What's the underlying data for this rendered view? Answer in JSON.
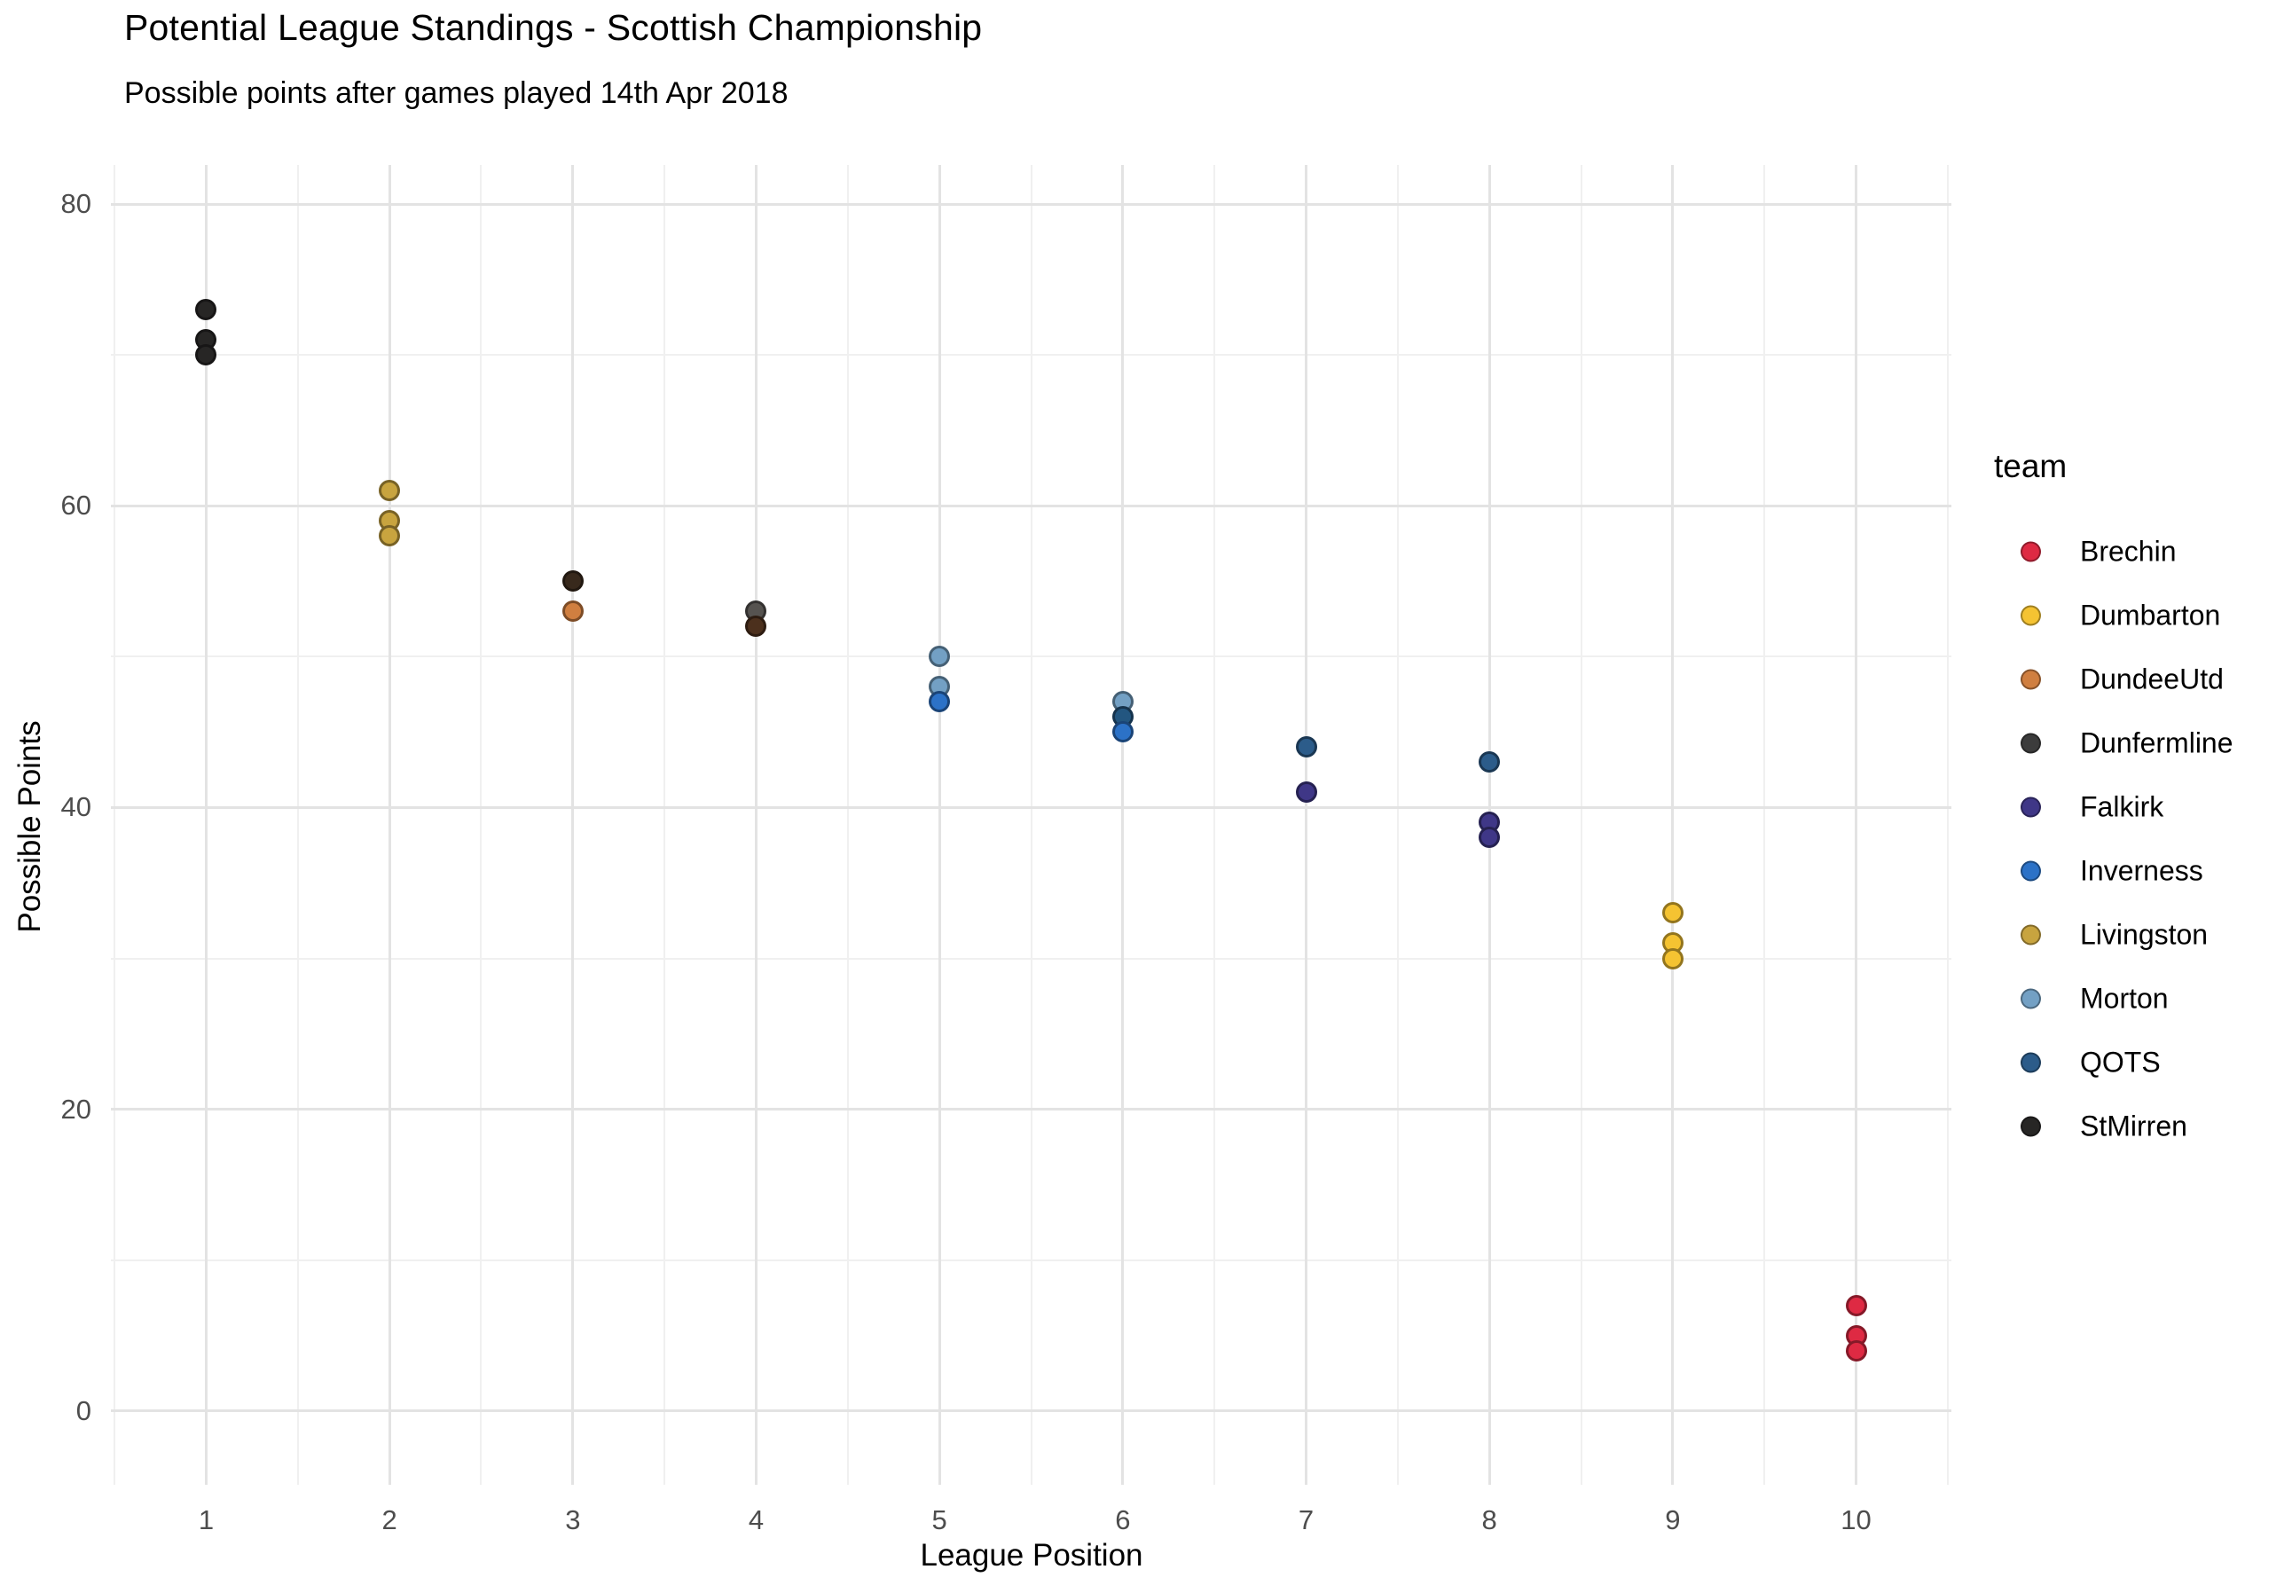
{
  "chart_data": {
    "type": "scatter",
    "title": "Potential League Standings - Scottish Championship",
    "subtitle": "Possible points after games played 14th Apr 2018",
    "xlabel": "League Position",
    "ylabel": "Possible Points",
    "legend_title": "team",
    "legend_position": "right",
    "grid": true,
    "xlim": [
      0.48,
      10.52
    ],
    "ylim": [
      -4.9,
      82.6
    ],
    "x_ticks": [
      1,
      2,
      3,
      4,
      5,
      6,
      7,
      8,
      9,
      10
    ],
    "y_ticks": [
      0,
      20,
      40,
      60,
      80
    ],
    "x_minor": [
      0.5,
      1.5,
      2.5,
      3.5,
      4.5,
      5.5,
      6.5,
      7.5,
      8.5,
      9.5,
      10.5
    ],
    "y_minor": [
      10,
      30,
      50,
      70
    ],
    "teams": [
      {
        "name": "Brechin",
        "color": "#DE2A43"
      },
      {
        "name": "Dumbarton",
        "color": "#F5C332"
      },
      {
        "name": "DundeeUtd",
        "color": "#D07F40"
      },
      {
        "name": "Dunfermline",
        "color": "#3C3C3C"
      },
      {
        "name": "Falkirk",
        "color": "#3F3787"
      },
      {
        "name": "Inverness",
        "color": "#2C72C7"
      },
      {
        "name": "Livingston",
        "color": "#C8A43F"
      },
      {
        "name": "Morton",
        "color": "#73A0C4"
      },
      {
        "name": "QOTS",
        "color": "#2C5C8A"
      },
      {
        "name": "StMirren",
        "color": "#272625"
      }
    ],
    "points": [
      {
        "x": 1,
        "y": 73,
        "team": "StMirren"
      },
      {
        "x": 1,
        "y": 71,
        "team": "StMirren"
      },
      {
        "x": 1,
        "y": 70,
        "team": "StMirren"
      },
      {
        "x": 2,
        "y": 61,
        "team": "Livingston"
      },
      {
        "x": 2,
        "y": 59,
        "team": "Livingston"
      },
      {
        "x": 2,
        "y": 58,
        "team": "Livingston"
      },
      {
        "x": 3,
        "y": 55,
        "team": "Dunfermline",
        "color_override": "#38291C"
      },
      {
        "x": 3,
        "y": 53,
        "team": "DundeeUtd"
      },
      {
        "x": 4,
        "y": 53,
        "team": "Dunfermline",
        "color_override": "#565350"
      },
      {
        "x": 4,
        "y": 52,
        "team": "DundeeUtd",
        "color_override": "#4C301D"
      },
      {
        "x": 5,
        "y": 50,
        "team": "Morton"
      },
      {
        "x": 5,
        "y": 48,
        "team": "Morton"
      },
      {
        "x": 5,
        "y": 47,
        "team": "Inverness"
      },
      {
        "x": 6,
        "y": 47,
        "team": "Morton"
      },
      {
        "x": 6,
        "y": 46,
        "team": "QOTS",
        "color_override": "#235680"
      },
      {
        "x": 6,
        "y": 45,
        "team": "Inverness"
      },
      {
        "x": 7,
        "y": 44,
        "team": "QOTS"
      },
      {
        "x": 7,
        "y": 41,
        "team": "Falkirk"
      },
      {
        "x": 8,
        "y": 43,
        "team": "QOTS"
      },
      {
        "x": 8,
        "y": 39,
        "team": "Falkirk"
      },
      {
        "x": 8,
        "y": 38,
        "team": "Falkirk"
      },
      {
        "x": 9,
        "y": 33,
        "team": "Dumbarton"
      },
      {
        "x": 9,
        "y": 31,
        "team": "Dumbarton"
      },
      {
        "x": 9,
        "y": 30,
        "team": "Dumbarton"
      },
      {
        "x": 10,
        "y": 7,
        "team": "Brechin"
      },
      {
        "x": 10,
        "y": 5,
        "team": "Brechin"
      },
      {
        "x": 10,
        "y": 4,
        "team": "Brechin"
      }
    ]
  }
}
